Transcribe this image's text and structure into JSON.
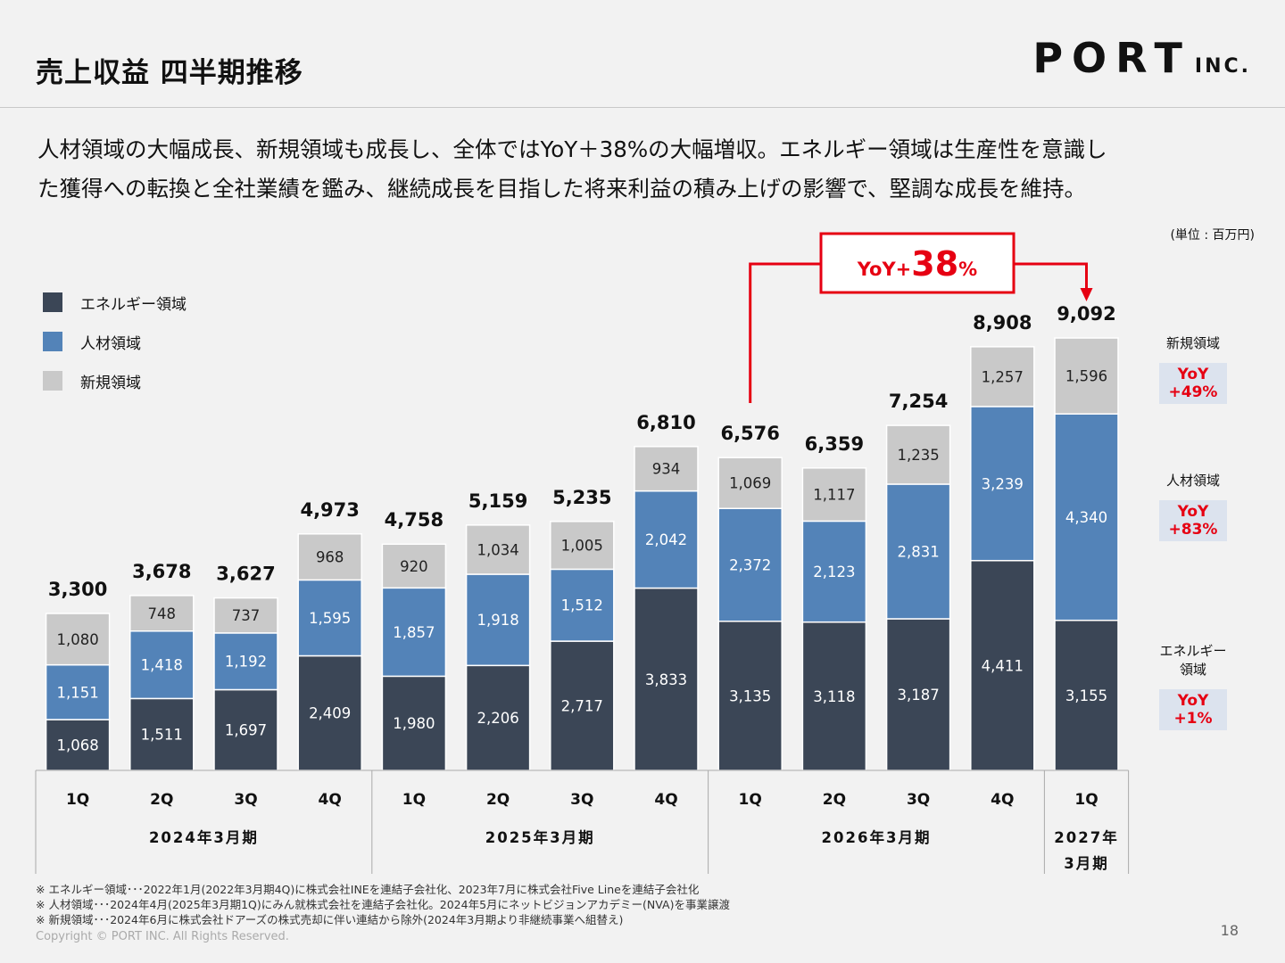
{
  "header": {
    "title": "売上収益 四半期推移",
    "logo": "PORT",
    "logo_suffix": "INC."
  },
  "lead": "人材領域の大幅成長、新規領域も成長し、全体ではYoY＋38%の大幅増収。エネルギー領域は生産性を意識し\nた獲得への転換と全社業績を鑑み、継続成長を目指した将来利益の積み上げの影響で、堅調な成長を維持。",
  "unit_note": "(単位 : 百万円)",
  "legend": [
    {
      "label": "エネルギー領域",
      "color": "#3b4656"
    },
    {
      "label": "人材領域",
      "color": "#5383b8"
    },
    {
      "label": "新規領域",
      "color": "#c9c9c9"
    }
  ],
  "side_yoy": [
    {
      "label": "新規領域",
      "value": "YoY\n+49%"
    },
    {
      "label": "人材領域",
      "value": "YoY\n+83%"
    },
    {
      "label": "エネルギー領域",
      "value": "YoY\n+1%"
    }
  ],
  "footnotes": [
    "※ エネルギー領域･･･2022年1月(2022年3月期4Q)に株式会社INEを連結子会社化、2023年7月に株式会社Five Lineを連結子会社化",
    "※ 人材領域･･･2024年4月(2025年3月期1Q)にみん就株式会社を連結子会社化。2024年5月にネットビジョンアカデミー(NVA)を事業譲渡",
    "※ 新規領域･･･2024年6月に株式会社ドアーズの株式売却に伴い連結から除外(2024年3月期より非継続事業へ組替え)"
  ],
  "copyright": "Copyright © PORT INC. All Rights Reserved.",
  "page_number": "18",
  "chart_data": {
    "type": "bar",
    "stacked": true,
    "categories": [
      "1Q",
      "2Q",
      "3Q",
      "4Q",
      "1Q",
      "2Q",
      "3Q",
      "4Q",
      "1Q",
      "2Q",
      "3Q",
      "4Q",
      "1Q"
    ],
    "groups": [
      {
        "label": "2024年3月期",
        "count": 4
      },
      {
        "label": "2025年3月期",
        "count": 4
      },
      {
        "label": "2026年3月期",
        "count": 4
      },
      {
        "label": "2027年\n3月期",
        "count": 1
      }
    ],
    "series": [
      {
        "name": "エネルギー領域",
        "color": "#3b4656",
        "values": [
          1068,
          1511,
          1697,
          2409,
          1980,
          2206,
          2717,
          3833,
          3135,
          3118,
          3187,
          4411,
          3155
        ],
        "labels": [
          "1,068",
          "1,511",
          "1,697",
          "2,409",
          "1,980",
          "2,206",
          "2,717",
          "3,833",
          "3,135",
          "3,118",
          "3,187",
          "4,411",
          "3,155"
        ]
      },
      {
        "name": "人材領域",
        "color": "#5383b8",
        "values": [
          1151,
          1418,
          1192,
          1595,
          1857,
          1918,
          1512,
          2042,
          2372,
          2123,
          2831,
          3239,
          4340
        ],
        "labels": [
          "1,151",
          "1,418",
          "1,192",
          "1,595",
          "1,857",
          "1,918",
          "1,512",
          "2,042",
          "2,372",
          "2,123",
          "2,831",
          "3,239",
          "4,340"
        ]
      },
      {
        "name": "新規領域",
        "color": "#c9c9c9",
        "values": [
          1080,
          748,
          737,
          968,
          920,
          1034,
          1005,
          934,
          1069,
          1117,
          1235,
          1257,
          1596
        ],
        "labels": [
          "1,080",
          "748",
          "737",
          "968",
          "920",
          "1,034",
          "1,005",
          "934",
          "1,069",
          "1,117",
          "1,235",
          "1,257",
          "1,596"
        ]
      }
    ],
    "totals": [
      3300,
      3678,
      3627,
      4973,
      4758,
      5159,
      5235,
      6810,
      6576,
      6359,
      7254,
      8908,
      9092
    ],
    "total_labels": [
      "3,300",
      "3,678",
      "3,627",
      "4,973",
      "4,758",
      "5,159",
      "5,235",
      "6,810",
      "6,576",
      "6,359",
      "7,254",
      "8,908",
      "9,092"
    ],
    "annotation": {
      "prefix": "YoY+",
      "value": "38",
      "suffix": "%",
      "from_index": 8,
      "to_index": 12,
      "color": "#e60012"
    },
    "ylim": [
      0,
      9500
    ]
  }
}
